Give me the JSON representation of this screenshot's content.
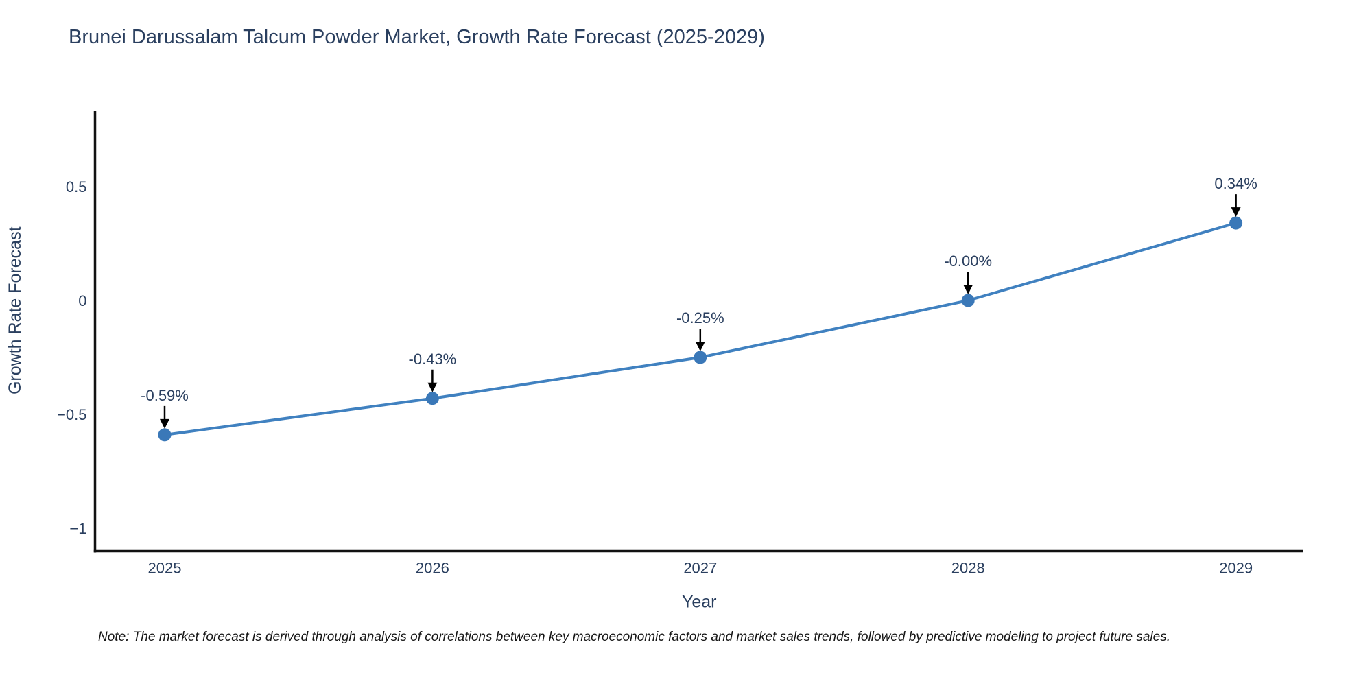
{
  "page": {
    "background_color": "#ffffff"
  },
  "title": "Brunei Darussalam Talcum Powder Market, Growth Rate Forecast (2025-2029)",
  "note": "Note: The market forecast is derived through analysis of correlations between key macroeconomic factors and market sales trends, followed by predictive modeling to project future sales.",
  "chart_data": {
    "type": "line",
    "title": "Brunei Darussalam Talcum Powder Market, Growth Rate Forecast (2025-2029)",
    "xlabel": "Year",
    "ylabel": "Growth Rate Forecast",
    "categories": [
      "2025",
      "2026",
      "2027",
      "2028",
      "2029"
    ],
    "values": [
      -0.59,
      -0.43,
      -0.25,
      -0.0,
      0.34
    ],
    "series": [
      {
        "name": "Growth Rate Forecast",
        "values": [
          -0.59,
          -0.43,
          -0.25,
          -0.0,
          0.34
        ],
        "point_labels": [
          "-0.59%",
          "-0.43%",
          "-0.25%",
          "-0.00%",
          "0.34%"
        ]
      }
    ],
    "yticks": [
      0.5,
      0,
      -0.5,
      -1
    ],
    "ytick_labels": [
      "0.5",
      "0",
      "−0.5",
      "−1"
    ],
    "ylim": [
      -1.11,
      0.82
    ],
    "grid": false,
    "legend_position": "none",
    "annotations_have_down_arrows": true,
    "colors": {
      "line": "#4081c0",
      "marker": "#3a78b8",
      "axis": "#111111",
      "tick_text": "#2a3f5f",
      "annotation_text": "#2a3f5f",
      "arrow": "#000000",
      "title_text": "#2a3f5f"
    }
  }
}
